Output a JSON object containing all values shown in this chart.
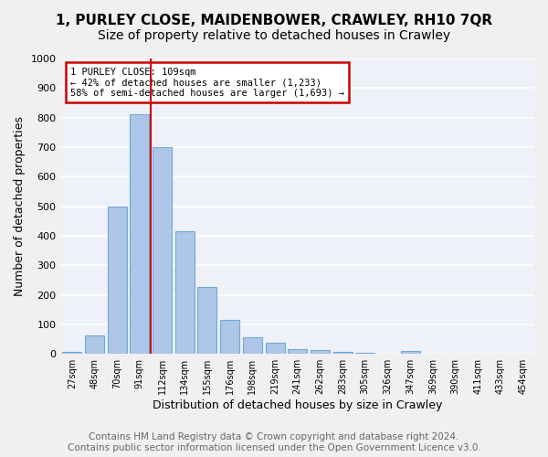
{
  "title1": "1, PURLEY CLOSE, MAIDENBOWER, CRAWLEY, RH10 7QR",
  "title2": "Size of property relative to detached houses in Crawley",
  "xlabel": "Distribution of detached houses by size in Crawley",
  "ylabel": "Number of detached properties",
  "footer1": "Contains HM Land Registry data © Crown copyright and database right 2024.",
  "footer2": "Contains public sector information licensed under the Open Government Licence v3.0.",
  "annotation_line1": "1 PURLEY CLOSE: 109sqm",
  "annotation_line2": "← 42% of detached houses are smaller (1,233)",
  "annotation_line3": "58% of semi-detached houses are larger (1,693) →",
  "bar_labels": [
    "27sqm",
    "48sqm",
    "70sqm",
    "91sqm",
    "112sqm",
    "134sqm",
    "155sqm",
    "176sqm",
    "198sqm",
    "219sqm",
    "241sqm",
    "262sqm",
    "283sqm",
    "305sqm",
    "326sqm",
    "347sqm",
    "369sqm",
    "390sqm",
    "411sqm",
    "433sqm",
    "454sqm"
  ],
  "bar_values": [
    8,
    62,
    500,
    810,
    700,
    415,
    225,
    115,
    57,
    37,
    17,
    13,
    7,
    4,
    2,
    10,
    0,
    0,
    0,
    0,
    0
  ],
  "bar_color": "#aec6e8",
  "bar_edge_color": "#6fa8d6",
  "vline_x": 3.5,
  "vline_color": "#cc0000",
  "annotation_box_color": "#cc0000",
  "ylim": [
    0,
    1000
  ],
  "yticks": [
    0,
    100,
    200,
    300,
    400,
    500,
    600,
    700,
    800,
    900,
    1000
  ],
  "background_color": "#eef2f8",
  "grid_color": "#ffffff",
  "title1_fontsize": 11,
  "title2_fontsize": 10,
  "xlabel_fontsize": 9,
  "ylabel_fontsize": 9,
  "footer_fontsize": 7.5
}
